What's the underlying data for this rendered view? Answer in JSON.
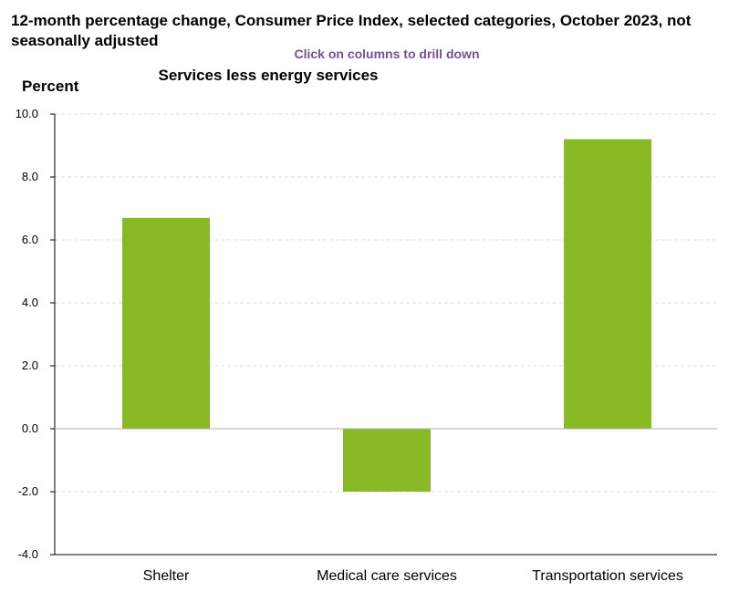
{
  "title_line1": "12-month percentage change, Consumer Price Index, selected categories, October 2023, not",
  "title_line2": "seasonally adjusted",
  "drill_hint": "Click on columns to drill down",
  "colors": {
    "bar": "#8ab926",
    "drill_hint": "#7a4f9a",
    "grid": "#dcdcdc",
    "axis": "#000000"
  },
  "chart_data": {
    "type": "bar",
    "title": "Services less energy services",
    "ylabel": "Percent",
    "xlabel": "",
    "categories": [
      "Shelter",
      "Medical care services",
      "Transportation services"
    ],
    "values": [
      6.7,
      -2.0,
      9.2
    ],
    "ylim": [
      -4.0,
      10.0
    ],
    "yticks": [
      10.0,
      8.0,
      6.0,
      4.0,
      2.0,
      0.0,
      -2.0,
      -4.0
    ],
    "ytick_labels": [
      "10.0",
      "8.0",
      "6.0",
      "4.0",
      "2.0",
      "0.0",
      "-2.0",
      "-4.0"
    ],
    "grid": true,
    "legend": "none"
  }
}
